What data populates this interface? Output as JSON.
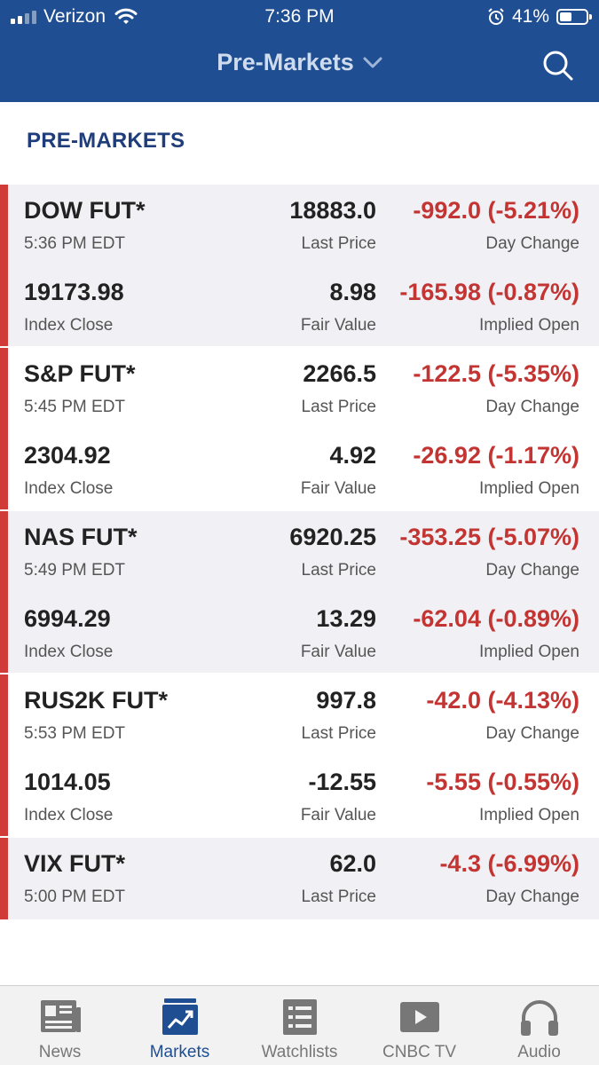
{
  "status_bar": {
    "carrier": "Verizon",
    "time": "7:36 PM",
    "battery": "41%"
  },
  "header": {
    "title": "Pre-Markets",
    "icons": [
      "chevron-down-icon",
      "search-icon"
    ]
  },
  "section": {
    "title": "PRE-MARKETS"
  },
  "labels": {
    "last_price": "Last Price",
    "day_change": "Day Change",
    "index_close": "Index Close",
    "fair_value": "Fair Value",
    "implied_open": "Implied Open"
  },
  "quotes": [
    {
      "name": "DOW FUT*",
      "time": "5:36 PM EDT",
      "last_price": "18883.0",
      "day_change": "-992.0 (-5.21%)",
      "index_close": "19173.98",
      "fair_value": "8.98",
      "implied_open": "-165.98 (-0.87%)"
    },
    {
      "name": "S&P FUT*",
      "time": "5:45 PM EDT",
      "last_price": "2266.5",
      "day_change": "-122.5 (-5.35%)",
      "index_close": "2304.92",
      "fair_value": "4.92",
      "implied_open": "-26.92 (-1.17%)"
    },
    {
      "name": "NAS FUT*",
      "time": "5:49 PM EDT",
      "last_price": "6920.25",
      "day_change": "-353.25 (-5.07%)",
      "index_close": "6994.29",
      "fair_value": "13.29",
      "implied_open": "-62.04 (-0.89%)"
    },
    {
      "name": "RUS2K FUT*",
      "time": "5:53 PM EDT",
      "last_price": "997.8",
      "day_change": "-42.0 (-4.13%)",
      "index_close": "1014.05",
      "fair_value": "-12.55",
      "implied_open": "-5.55 (-0.55%)"
    },
    {
      "name": "VIX FUT*",
      "time": "5:00 PM EDT",
      "last_price": "62.0",
      "day_change": "-4.3 (-6.99%)"
    }
  ],
  "tabbar": {
    "active": "Markets",
    "tabs": [
      {
        "label": "News",
        "icon": "news-icon"
      },
      {
        "label": "Markets",
        "icon": "markets-icon"
      },
      {
        "label": "Watchlists",
        "icon": "watchlists-icon"
      },
      {
        "label": "CNBC TV",
        "icon": "tv-play-icon"
      },
      {
        "label": "Audio",
        "icon": "headphones-icon"
      }
    ]
  },
  "colors": {
    "header_bg": "#1f4e93",
    "section_title": "#1f3d7a",
    "negative": "#c33533",
    "row_accent": "#d03a37",
    "active_tab": "#1f4e93"
  }
}
